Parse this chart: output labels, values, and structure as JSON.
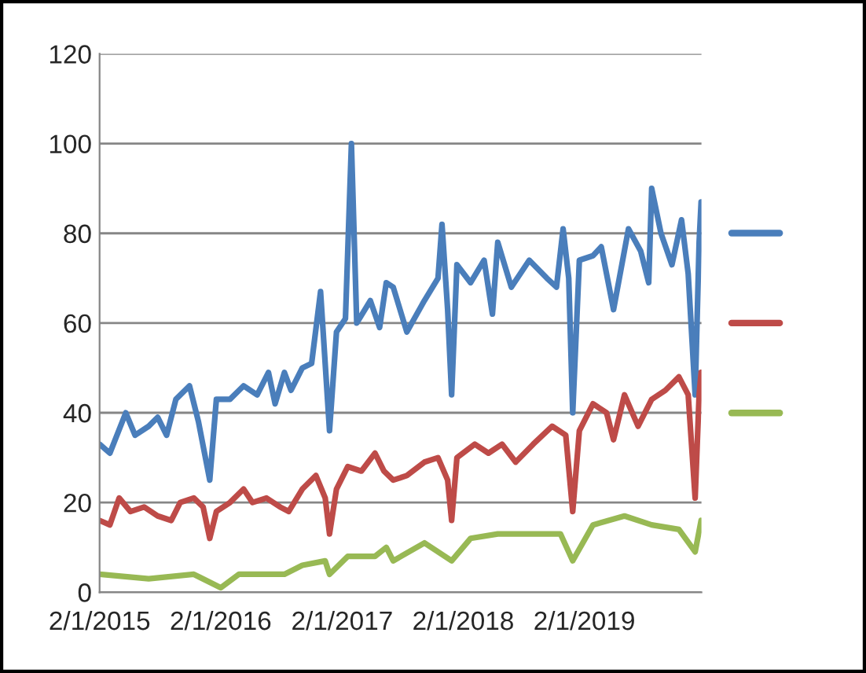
{
  "chart_data": {
    "type": "line",
    "xlim": [
      "2015-02-01",
      "2020-01-20"
    ],
    "xticks": [
      {
        "value": "2015-02-01",
        "label": "2/1/2015"
      },
      {
        "value": "2016-02-01",
        "label": "2/1/2016"
      },
      {
        "value": "2017-02-01",
        "label": "2/1/2017"
      },
      {
        "value": "2018-02-01",
        "label": "2/1/2018"
      },
      {
        "value": "2019-02-01",
        "label": "2/1/2019"
      }
    ],
    "ylim": [
      0,
      120
    ],
    "yticks": [
      0,
      20,
      40,
      60,
      80,
      100,
      120
    ],
    "grid": "y",
    "marker": "none",
    "line_style": "solid",
    "series": [
      {
        "color": "#4a7ebb",
        "x": [
          "2015-02-01",
          "2015-03-04",
          "2015-04-21",
          "2015-05-19",
          "2015-06-29",
          "2015-07-26",
          "2015-08-22",
          "2015-09-19",
          "2015-10-30",
          "2015-11-26",
          "2015-12-30",
          "2016-01-19",
          "2016-02-29",
          "2016-04-10",
          "2016-05-21",
          "2016-06-24",
          "2016-07-14",
          "2016-08-11",
          "2016-08-31",
          "2016-10-04",
          "2016-11-01",
          "2016-11-28",
          "2016-12-25",
          "2017-01-15",
          "2017-02-11",
          "2017-03-01",
          "2017-03-17",
          "2017-04-27",
          "2017-05-25",
          "2017-06-14",
          "2017-07-05",
          "2017-08-15",
          "2017-10-07",
          "2017-11-17",
          "2017-11-29",
          "2017-12-16",
          "2017-12-28",
          "2018-01-13",
          "2018-02-23",
          "2018-04-05",
          "2018-04-30",
          "2018-05-16",
          "2018-06-26",
          "2018-08-19",
          "2018-10-11",
          "2018-11-09",
          "2018-11-29",
          "2018-12-16",
          "2018-12-28",
          "2019-01-17",
          "2019-02-27",
          "2019-03-24",
          "2019-04-30",
          "2019-06-14",
          "2019-07-21",
          "2019-08-14",
          "2019-08-23",
          "2019-09-20",
          "2019-10-23",
          "2019-11-21",
          "2019-12-11",
          "2020-01-01",
          "2020-01-13",
          "2020-01-19"
        ],
        "values": [
          33,
          31,
          40,
          35,
          37,
          39,
          35,
          43,
          46,
          38,
          25,
          43,
          43,
          46,
          44,
          49,
          42,
          49,
          45,
          50,
          51,
          67,
          36,
          58,
          61,
          100,
          60,
          65,
          59,
          69,
          68,
          58,
          65,
          70,
          82,
          63,
          44,
          73,
          69,
          74,
          62,
          78,
          68,
          74,
          70,
          68,
          81,
          70,
          40,
          74,
          75,
          77,
          63,
          81,
          76,
          69,
          90,
          80,
          73,
          83,
          71,
          44,
          78,
          87
        ]
      },
      {
        "color": "#be4b48",
        "x": [
          "2015-02-01",
          "2015-03-04",
          "2015-04-01",
          "2015-05-05",
          "2015-06-15",
          "2015-07-26",
          "2015-09-05",
          "2015-10-02",
          "2015-11-12",
          "2015-12-10",
          "2015-12-30",
          "2016-01-19",
          "2016-02-29",
          "2016-04-10",
          "2016-05-07",
          "2016-06-18",
          "2016-07-29",
          "2016-08-24",
          "2016-10-04",
          "2016-11-14",
          "2016-12-12",
          "2016-12-25",
          "2017-01-15",
          "2017-02-18",
          "2017-03-31",
          "2017-05-11",
          "2017-06-07",
          "2017-07-05",
          "2017-08-15",
          "2017-10-07",
          "2017-11-17",
          "2017-12-16",
          "2017-12-28",
          "2018-01-13",
          "2018-03-08",
          "2018-04-18",
          "2018-05-29",
          "2018-07-09",
          "2018-08-31",
          "2018-10-27",
          "2018-12-07",
          "2018-12-28",
          "2019-01-17",
          "2019-02-27",
          "2019-04-09",
          "2019-04-30",
          "2019-06-02",
          "2019-07-13",
          "2019-08-23",
          "2019-10-03",
          "2019-11-13",
          "2019-12-11",
          "2020-01-01",
          "2020-01-13",
          "2020-01-19"
        ],
        "values": [
          16,
          15,
          21,
          18,
          19,
          17,
          16,
          20,
          21,
          19,
          12,
          18,
          20,
          23,
          20,
          21,
          19,
          18,
          23,
          26,
          21,
          13,
          23,
          28,
          27,
          31,
          27,
          25,
          26,
          29,
          30,
          25,
          16,
          30,
          33,
          31,
          33,
          29,
          33,
          37,
          35,
          18,
          36,
          42,
          40,
          34,
          44,
          37,
          43,
          45,
          48,
          44,
          21,
          44,
          49
        ]
      },
      {
        "color": "#98b954",
        "x": [
          "2015-02-01",
          "2015-06-29",
          "2015-11-12",
          "2016-02-01",
          "2016-03-27",
          "2016-06-18",
          "2016-08-11",
          "2016-10-04",
          "2016-12-12",
          "2016-12-25",
          "2017-02-18",
          "2017-05-11",
          "2017-06-14",
          "2017-07-05",
          "2017-10-07",
          "2017-12-28",
          "2018-02-23",
          "2018-05-16",
          "2018-08-19",
          "2018-11-21",
          "2018-12-28",
          "2019-02-27",
          "2019-06-02",
          "2019-08-23",
          "2019-11-13",
          "2020-01-01",
          "2020-01-19"
        ],
        "values": [
          4,
          3,
          4,
          1,
          4,
          4,
          4,
          6,
          7,
          4,
          8,
          8,
          10,
          7,
          11,
          7,
          12,
          13,
          13,
          13,
          7,
          15,
          17,
          15,
          14,
          9,
          16
        ]
      }
    ]
  }
}
